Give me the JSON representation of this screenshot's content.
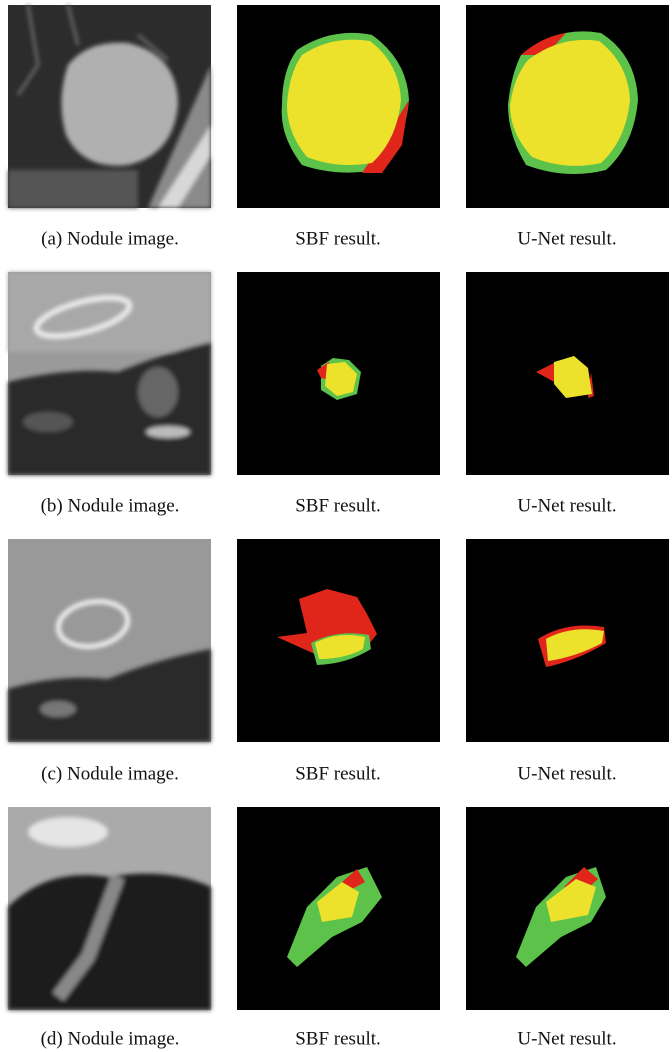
{
  "figure": {
    "rows": [
      [
        "(a) Nodule image.",
        "SBF result.",
        "U-Net result."
      ],
      [
        "(b) Nodule image.",
        "SBF result.",
        "U-Net result."
      ],
      [
        "(c) Nodule image.",
        "SBF result.",
        "U-Net result."
      ],
      [
        "(d) Nodule image.",
        "SBF result.",
        "U-Net result."
      ]
    ]
  }
}
